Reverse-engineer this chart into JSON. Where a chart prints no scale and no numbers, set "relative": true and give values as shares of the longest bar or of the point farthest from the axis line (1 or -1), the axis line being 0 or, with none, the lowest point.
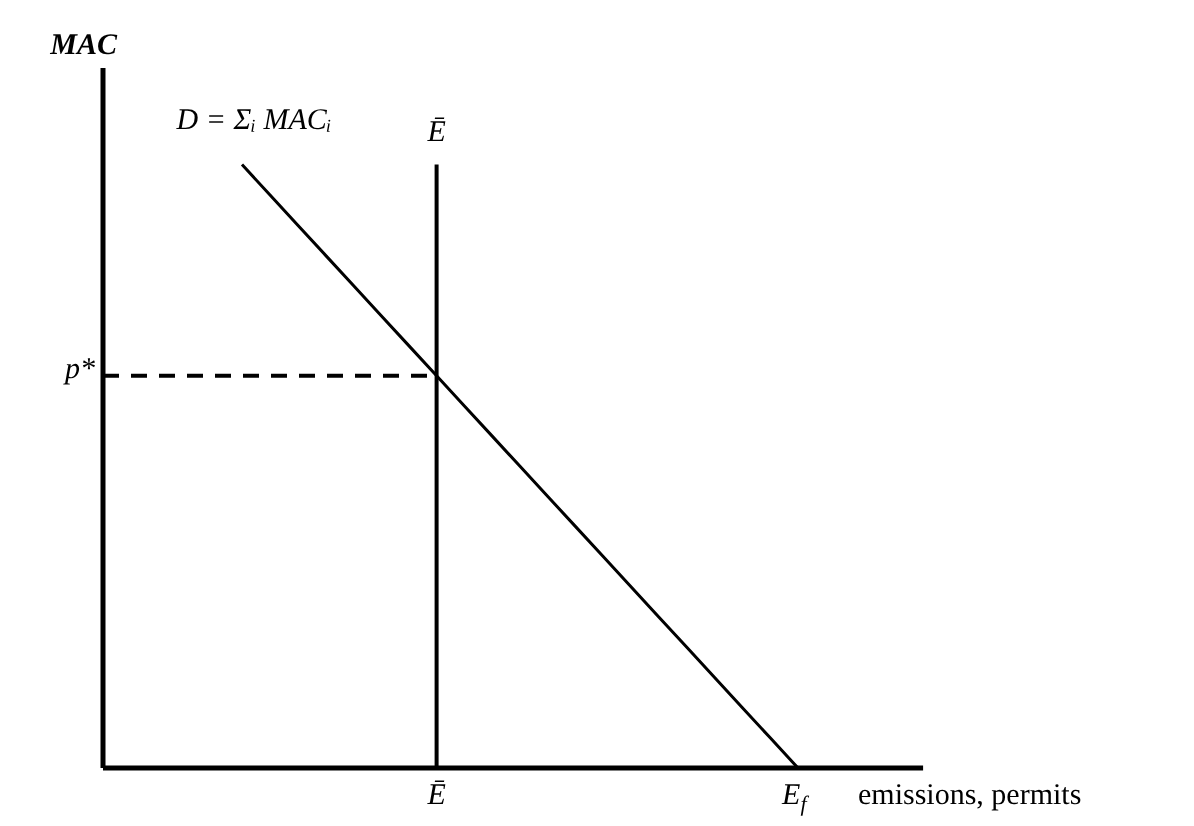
{
  "chart_data": {
    "type": "line",
    "relative": true,
    "ylabel": "MAC",
    "xlabel": "emissions, permits",
    "categories": [
      null,
      null,
      null,
      null,
      null,
      null,
      null,
      null,
      null,
      null,
      null,
      null,
      "Ē",
      null,
      null,
      null,
      null,
      null,
      null,
      null,
      null,
      null,
      null,
      null,
      null,
      "E$_{f}$",
      null,
      null,
      null,
      null
    ],
    "series": [
      {
        "name": "D = Σᵢ MACᵢ",
        "color": "#000000",
        "values": [
          null,
          null,
          null,
          null,
          null,
          1,
          0.95,
          0.9,
          0.85,
          0.8,
          0.75,
          0.7,
          0.65,
          0.6,
          0.55,
          0.5,
          0.45,
          0.4,
          0.35,
          0.3,
          0.25,
          0.2,
          0.15,
          0.1,
          0.05,
          0,
          null,
          null,
          null,
          null
        ]
      },
      {
        "name": "p*",
        "color": "#000000",
        "line_style": "dashed",
        "values": [
          0.65,
          0.65,
          0.65,
          0.65,
          0.65,
          0.65,
          0.65,
          0.65,
          0.65,
          0.65,
          0.65,
          0.65,
          0.65,
          null,
          null,
          null,
          null,
          null,
          null,
          null,
          null,
          null,
          null,
          null,
          null,
          null,
          null,
          null,
          null,
          null
        ]
      }
    ],
    "ref_lines": [
      {
        "axis": "x",
        "value": "Ē",
        "label": "Ē",
        "color": "#000000"
      }
    ]
  }
}
